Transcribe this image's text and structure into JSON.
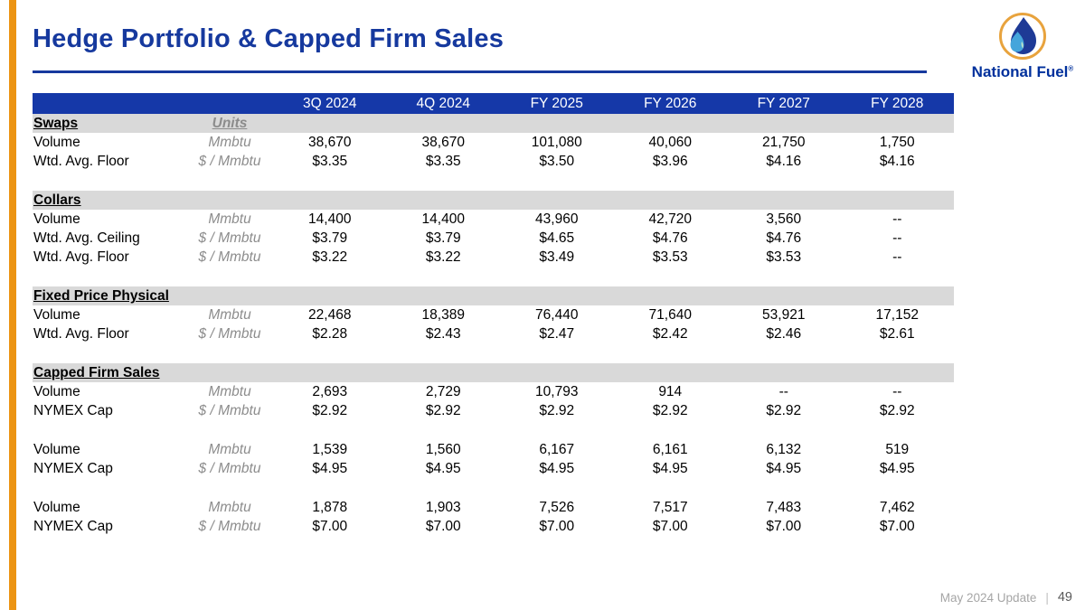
{
  "slide": {
    "title": "Hedge Portfolio & Capped Firm Sales",
    "logo": {
      "brand": "National Fuel",
      "registered_mark": "®",
      "icon": "flame-drop-icon"
    },
    "footer": {
      "update_label": "May 2024 Update",
      "separator": "|",
      "page_number": "49"
    }
  },
  "colors": {
    "title_blue": "#16399E",
    "header_row_blue": "#1538A8",
    "section_band_gray": "#D9D9D9",
    "units_text_gray": "#8C8C8C",
    "accent_orange": "#EC9413",
    "footer_gray": "#A6A6A6",
    "page_number_gray": "#595959",
    "logo_blue": "#00309C",
    "logo_ring_orange": "#E8A33D",
    "logo_flame_dark_blue": "#1E3A96",
    "logo_flame_light_blue": "#45A5DB"
  },
  "table": {
    "units_header": "Units",
    "columns": [
      "3Q 2024",
      "4Q 2024",
      "FY 2025",
      "FY 2026",
      "FY 2027",
      "FY 2028"
    ],
    "sections": [
      {
        "name": "Swaps",
        "show_units_header": true,
        "rows": [
          {
            "label": "Volume",
            "units": "Mmbtu",
            "values": [
              "38,670",
              "38,670",
              "101,080",
              "40,060",
              "21,750",
              "1,750"
            ]
          },
          {
            "label": "Wtd. Avg. Floor",
            "units": "$ / Mmbtu",
            "values": [
              "$3.35",
              "$3.35",
              "$3.50",
              "$3.96",
              "$4.16",
              "$4.16"
            ]
          }
        ]
      },
      {
        "name": "Collars",
        "rows": [
          {
            "label": "Volume",
            "units": "Mmbtu",
            "values": [
              "14,400",
              "14,400",
              "43,960",
              "42,720",
              "3,560",
              "--"
            ]
          },
          {
            "label": "Wtd. Avg. Ceiling",
            "units": "$ / Mmbtu",
            "values": [
              "$3.79",
              "$3.79",
              "$4.65",
              "$4.76",
              "$4.76",
              "--"
            ]
          },
          {
            "label": "Wtd. Avg. Floor",
            "units": "$ / Mmbtu",
            "values": [
              "$3.22",
              "$3.22",
              "$3.49",
              "$3.53",
              "$3.53",
              "--"
            ]
          }
        ]
      },
      {
        "name": "Fixed Price Physical",
        "rows": [
          {
            "label": "Volume",
            "units": "Mmbtu",
            "values": [
              "22,468",
              "18,389",
              "76,440",
              "71,640",
              "53,921",
              "17,152"
            ]
          },
          {
            "label": "Wtd. Avg. Floor",
            "units": "$ / Mmbtu",
            "values": [
              "$2.28",
              "$2.43",
              "$2.47",
              "$2.42",
              "$2.46",
              "$2.61"
            ]
          }
        ]
      },
      {
        "name": "Capped Firm Sales",
        "rows": [
          {
            "label": "Volume",
            "units": "Mmbtu",
            "values": [
              "2,693",
              "2,729",
              "10,793",
              "914",
              "--",
              "--"
            ]
          },
          {
            "label": "NYMEX Cap",
            "units": "$ / Mmbtu",
            "values": [
              "$2.92",
              "$2.92",
              "$2.92",
              "$2.92",
              "$2.92",
              "$2.92"
            ]
          }
        ]
      },
      {
        "name": null,
        "rows": [
          {
            "label": "Volume",
            "units": "Mmbtu",
            "values": [
              "1,539",
              "1,560",
              "6,167",
              "6,161",
              "6,132",
              "519"
            ]
          },
          {
            "label": "NYMEX Cap",
            "units": "$ / Mmbtu",
            "values": [
              "$4.95",
              "$4.95",
              "$4.95",
              "$4.95",
              "$4.95",
              "$4.95"
            ]
          }
        ]
      },
      {
        "name": null,
        "rows": [
          {
            "label": "Volume",
            "units": "Mmbtu",
            "values": [
              "1,878",
              "1,903",
              "7,526",
              "7,517",
              "7,483",
              "7,462"
            ]
          },
          {
            "label": "NYMEX Cap",
            "units": "$ / Mmbtu",
            "values": [
              "$7.00",
              "$7.00",
              "$7.00",
              "$7.00",
              "$7.00",
              "$7.00"
            ]
          }
        ]
      }
    ]
  }
}
